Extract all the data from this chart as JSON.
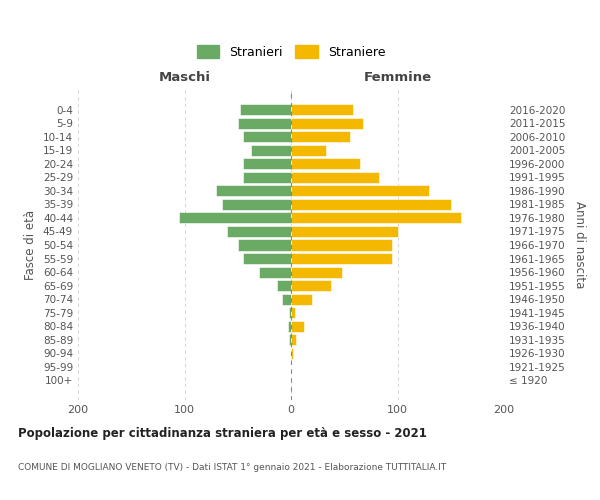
{
  "age_groups": [
    "100+",
    "95-99",
    "90-94",
    "85-89",
    "80-84",
    "75-79",
    "70-74",
    "65-69",
    "60-64",
    "55-59",
    "50-54",
    "45-49",
    "40-44",
    "35-39",
    "30-34",
    "25-29",
    "20-24",
    "15-19",
    "10-14",
    "5-9",
    "0-4"
  ],
  "birth_years": [
    "≤ 1920",
    "1921-1925",
    "1926-1930",
    "1931-1935",
    "1936-1940",
    "1941-1945",
    "1946-1950",
    "1951-1955",
    "1956-1960",
    "1961-1965",
    "1966-1970",
    "1971-1975",
    "1976-1980",
    "1981-1985",
    "1986-1990",
    "1991-1995",
    "1996-2000",
    "2001-2005",
    "2006-2010",
    "2011-2015",
    "2016-2020"
  ],
  "maschi": [
    0,
    0,
    0,
    2,
    3,
    2,
    8,
    13,
    30,
    45,
    50,
    60,
    105,
    65,
    70,
    45,
    45,
    38,
    45,
    50,
    48
  ],
  "femmine": [
    0,
    0,
    2,
    5,
    12,
    4,
    20,
    38,
    48,
    95,
    95,
    100,
    160,
    150,
    130,
    83,
    65,
    33,
    55,
    68,
    58
  ],
  "color_maschi": "#6aaa64",
  "color_femmine": "#f5b800",
  "title": "Popolazione per cittadinanza straniera per età e sesso - 2021",
  "subtitle": "COMUNE DI MOGLIANO VENETO (TV) - Dati ISTAT 1° gennaio 2021 - Elaborazione TUTTITALIA.IT",
  "ylabel_left": "Fasce di età",
  "ylabel_right": "Anni di nascita",
  "label_maschi": "Maschi",
  "label_femmine": "Femmine",
  "xlim": 200,
  "legend_maschi": "Stranieri",
  "legend_femmine": "Straniere",
  "background_color": "#ffffff",
  "grid_color": "#cccccc",
  "tick_color": "#888888"
}
